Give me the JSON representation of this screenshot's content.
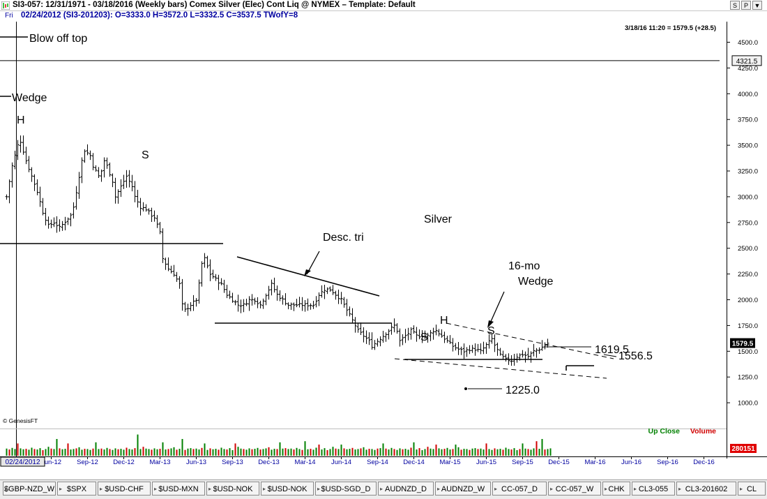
{
  "window": {
    "title": "SI3-057:  12/31/1971 - 03/18/2016  (Weekly bars)   Comex Silver (Elec) Cont Liq @ NYMEX  –  Template: Default",
    "buttons": [
      "S",
      "P",
      "▼"
    ]
  },
  "infobar": {
    "day": "Fri",
    "text": "02/24/2012 (SI3-201203):  O=3333.0  H=3572.0  L=3332.5  C=3537.5  TWofY=8"
  },
  "colors": {
    "up_close": "#008000",
    "volume": "#d00000",
    "price_tag_bg": "#000000",
    "volume_tag_bg": "#e00000"
  },
  "chart_data": {
    "type": "line",
    "chart_kind": "ohlc-weekly-bars",
    "symbol": "SI3-057",
    "timestamp_label": "3/18/16 11:20 = 1579.5 (+28.5)",
    "selected_date_label": "02/24/2012",
    "cursor_price_label": "4321.5",
    "last_price_label": "1579.5",
    "last_volume_label": "280151",
    "watermark": "© GenesisFT",
    "legend": {
      "up_close": "Up Close",
      "volume": "Volume"
    },
    "ylim": [
      750,
      4700
    ],
    "y_ticks": [
      1000,
      1250,
      1500,
      1750,
      2000,
      2250,
      2500,
      2750,
      3000,
      3250,
      3500,
      3750,
      4000,
      4250,
      4500
    ],
    "y_tick_labels": [
      "1000.0",
      "1250.0",
      "1500.0",
      "1750.0",
      "2000.0",
      "2250.0",
      "2500.0",
      "2750.0",
      "3000.0",
      "3250.0",
      "3500.0",
      "3750.0",
      "4000.0",
      "4250.0",
      "4500.0"
    ],
    "x_range_weeks": [
      0,
      256
    ],
    "x_ticks": [
      {
        "label": "Jun-12",
        "week": 16
      },
      {
        "label": "Sep-12",
        "week": 29
      },
      {
        "label": "Dec-12",
        "week": 42
      },
      {
        "label": "Mar-13",
        "week": 55
      },
      {
        "label": "Jun-13",
        "week": 68
      },
      {
        "label": "Sep-13",
        "week": 81
      },
      {
        "label": "Dec-13",
        "week": 94
      },
      {
        "label": "Mar-14",
        "week": 107
      },
      {
        "label": "Jun-14",
        "week": 120
      },
      {
        "label": "Sep-14",
        "week": 133
      },
      {
        "label": "Dec-14",
        "week": 146
      },
      {
        "label": "Mar-15",
        "week": 159
      },
      {
        "label": "Jun-15",
        "week": 172
      },
      {
        "label": "Sep-15",
        "week": 185
      },
      {
        "label": "Dec-15",
        "week": 198
      },
      {
        "label": "Mar-16",
        "week": 211
      },
      {
        "label": "Jun-16",
        "week": 224
      },
      {
        "label": "Sep-16",
        "week": 237
      },
      {
        "label": "Dec-16",
        "week": 250
      }
    ],
    "close_path": [
      [
        0,
        3000
      ],
      [
        2,
        3300
      ],
      [
        4,
        3500
      ],
      [
        5,
        3537
      ],
      [
        7,
        3350
      ],
      [
        9,
        3200
      ],
      [
        11,
        3050
      ],
      [
        13,
        2850
      ],
      [
        15,
        2720
      ],
      [
        17,
        2750
      ],
      [
        19,
        2700
      ],
      [
        21,
        2760
      ],
      [
        23,
        2820
      ],
      [
        24,
        2900
      ],
      [
        26,
        3200
      ],
      [
        27,
        3350
      ],
      [
        28,
        3450
      ],
      [
        30,
        3400
      ],
      [
        31,
        3300
      ],
      [
        33,
        3200
      ],
      [
        34,
        3250
      ],
      [
        35,
        3350
      ],
      [
        36,
        3300
      ],
      [
        38,
        3150
      ],
      [
        39,
        3000
      ],
      [
        40,
        3050
      ],
      [
        42,
        3150
      ],
      [
        43,
        3200
      ],
      [
        45,
        3100
      ],
      [
        46,
        3000
      ],
      [
        48,
        2900
      ],
      [
        50,
        2880
      ],
      [
        52,
        2820
      ],
      [
        53,
        2800
      ],
      [
        55,
        2650
      ],
      [
        56,
        2400
      ],
      [
        58,
        2300
      ],
      [
        60,
        2250
      ],
      [
        62,
        2150
      ],
      [
        63,
        1950
      ],
      [
        64,
        1900
      ],
      [
        66,
        1950
      ],
      [
        68,
        2000
      ],
      [
        69,
        2150
      ],
      [
        70,
        2350
      ],
      [
        71,
        2400
      ],
      [
        73,
        2250
      ],
      [
        75,
        2200
      ],
      [
        77,
        2150
      ],
      [
        79,
        2050
      ],
      [
        81,
        2000
      ],
      [
        83,
        1950
      ],
      [
        85,
        1950
      ],
      [
        87,
        2000
      ],
      [
        89,
        2000
      ],
      [
        91,
        1950
      ],
      [
        93,
        2050
      ],
      [
        95,
        2150
      ],
      [
        97,
        2050
      ],
      [
        99,
        2000
      ],
      [
        101,
        1950
      ],
      [
        103,
        1950
      ],
      [
        105,
        1950
      ],
      [
        107,
        1950
      ],
      [
        109,
        1950
      ],
      [
        110,
        1950
      ],
      [
        112,
        2050
      ],
      [
        114,
        2100
      ],
      [
        116,
        2100
      ],
      [
        118,
        2050
      ],
      [
        120,
        2000
      ],
      [
        122,
        1900
      ],
      [
        124,
        1800
      ],
      [
        126,
        1700
      ],
      [
        128,
        1650
      ],
      [
        130,
        1600
      ],
      [
        131,
        1550
      ],
      [
        133,
        1600
      ],
      [
        135,
        1650
      ],
      [
        137,
        1700
      ],
      [
        139,
        1750
      ],
      [
        140,
        1700
      ],
      [
        141,
        1600
      ],
      [
        143,
        1650
      ],
      [
        145,
        1700
      ],
      [
        147,
        1650
      ],
      [
        149,
        1650
      ],
      [
        151,
        1650
      ],
      [
        153,
        1700
      ],
      [
        154,
        1700
      ],
      [
        156,
        1650
      ],
      [
        158,
        1600
      ],
      [
        160,
        1550
      ],
      [
        162,
        1520
      ],
      [
        164,
        1500
      ],
      [
        166,
        1520
      ],
      [
        168,
        1520
      ],
      [
        170,
        1500
      ],
      [
        172,
        1560
      ],
      [
        174,
        1620
      ],
      [
        175,
        1560
      ],
      [
        177,
        1460
      ],
      [
        179,
        1420
      ],
      [
        181,
        1410
      ],
      [
        183,
        1450
      ],
      [
        185,
        1470
      ],
      [
        187,
        1450
      ],
      [
        189,
        1500
      ],
      [
        191,
        1520
      ],
      [
        193,
        1560
      ],
      [
        194,
        1579
      ]
    ],
    "volume_bar_weeks": 196,
    "volume_pattern": [
      0.32,
      0.28,
      0.35,
      0.3,
      0.26,
      0.33,
      0.29,
      0.31,
      0.27,
      0.36,
      0.3,
      0.28,
      0.34,
      0.25,
      0.3,
      0.4,
      0.32,
      0.3,
      0.27,
      0.33,
      0.29,
      0.31,
      0.35,
      0.28,
      0.3,
      0.33,
      0.38,
      0.27,
      0.31,
      0.3,
      0.26,
      0.32,
      0.34,
      0.3
    ],
    "volume_spikes": [
      [
        4,
        0.55
      ],
      [
        18,
        0.75
      ],
      [
        22,
        0.55
      ],
      [
        32,
        0.6
      ],
      [
        47,
        0.95
      ],
      [
        56,
        0.6
      ],
      [
        63,
        0.75
      ],
      [
        71,
        0.55
      ],
      [
        82,
        0.55
      ],
      [
        98,
        0.6
      ],
      [
        107,
        0.65
      ],
      [
        112,
        0.5
      ],
      [
        120,
        0.5
      ],
      [
        135,
        0.55
      ],
      [
        146,
        0.6
      ],
      [
        154,
        0.5
      ],
      [
        161,
        0.5
      ],
      [
        172,
        0.55
      ],
      [
        185,
        0.55
      ],
      [
        190,
        0.65
      ],
      [
        192,
        0.75
      ]
    ],
    "annotations": [
      {
        "text": "Blow off top",
        "week": 9,
        "price": 4550
      },
      {
        "text": "Wedge",
        "week": 4,
        "price": 4030
      },
      {
        "text": "H",
        "week": 7,
        "price": 3720
      },
      {
        "text": "S",
        "week": 45,
        "price": 3470
      },
      {
        "text": "Silver",
        "week": 136,
        "price": 2960
      },
      {
        "text": "Desc. tri",
        "week": 98,
        "price": 2660
      },
      {
        "text": "16-mo",
        "week": 168,
        "price": 2440
      },
      {
        "text": "Wedge",
        "week": 168,
        "price": 2260
      },
      {
        "text": "H",
        "week": 145,
        "price": 1780
      },
      {
        "text": "S",
        "week": 135,
        "price": 1630
      },
      {
        "text": "S",
        "week": 158,
        "price": 1670
      },
      {
        "text": "1619.5",
        "week": 199,
        "price": 1620
      },
      {
        "text": "1556.5",
        "week": 206,
        "price": 1556
      },
      {
        "text": "1225.0",
        "week": 168,
        "price": 1225
      }
    ]
  },
  "tabs": [
    "$GBP-NZD_W",
    "$SPX",
    "$USD-CHF",
    "$USD-MXN",
    "$USD-NOK",
    "$USD-NOK",
    "$USD-SGD_D",
    "AUDNZD_D",
    "AUDNZD_W",
    "CC-057_D",
    "CC-057_W",
    "CHK",
    "CL3-055",
    "CL3-201602",
    "CL"
  ]
}
